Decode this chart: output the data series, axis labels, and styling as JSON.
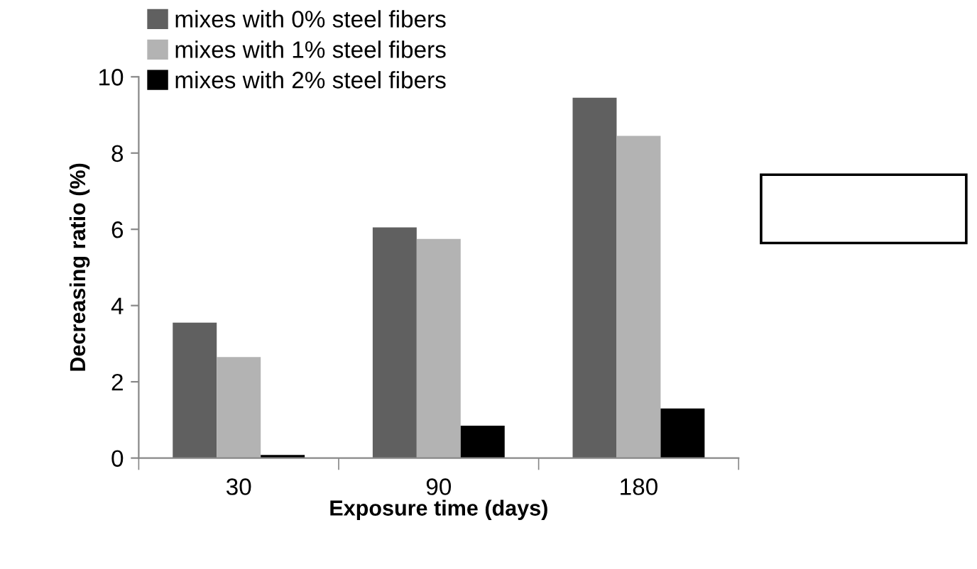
{
  "chart_data": {
    "type": "bar",
    "xlabel": "Exposure time (days)",
    "ylabel": "Decreasing ratio (%)",
    "categories": [
      "30",
      "90",
      "180"
    ],
    "series": [
      {
        "name": "mixes with 0% steel fibers",
        "color": "#606060",
        "values": [
          3.55,
          6.05,
          9.45
        ]
      },
      {
        "name": "mixes with 1% steel fibers",
        "color": "#b3b3b3",
        "values": [
          2.65,
          5.75,
          8.45
        ]
      },
      {
        "name": "mixes with 2% steel fibers",
        "color": "#000000",
        "values": [
          0.08,
          0.85,
          1.3
        ]
      }
    ],
    "ylim": [
      0,
      10
    ],
    "yticks": [
      0,
      2,
      4,
      6,
      8,
      10
    ],
    "grid": false,
    "legend": "top left"
  }
}
